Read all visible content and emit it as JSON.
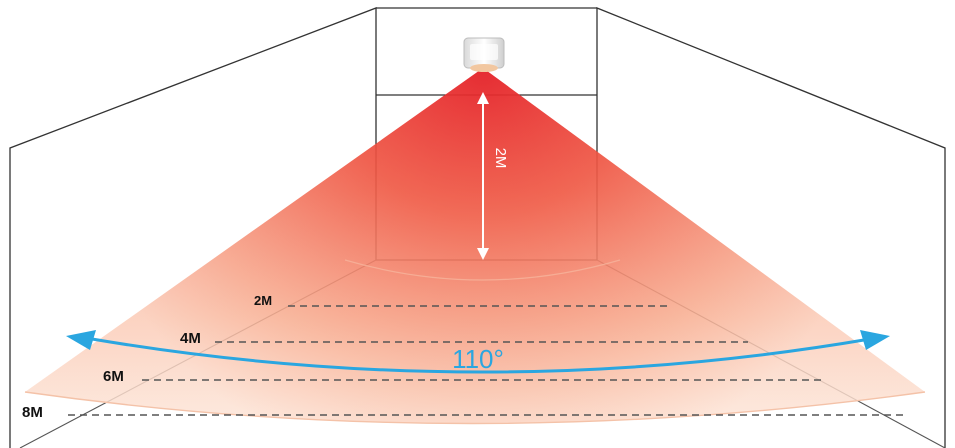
{
  "diagram": {
    "height_label": "2M",
    "angle_label": "110°",
    "distance_labels": [
      "2M",
      "4M",
      "6M",
      "8M"
    ],
    "colors": {
      "beam_core": "#e8232a",
      "beam_mid": "#f26a4a",
      "beam_edge": "#fbd3bd",
      "angle_arrow": "#2aa6e0",
      "dashes": "#555555"
    },
    "icons": {
      "sensor": "sensor-device-icon",
      "angle_arrow": "double-arrow-arc-icon",
      "height_arrow": "double-arrow-vertical-icon"
    }
  }
}
